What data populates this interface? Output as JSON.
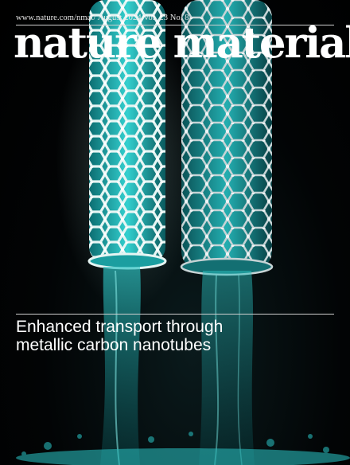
{
  "cover": {
    "header_line": "www.nature.com/nmat/ August 2024 Vol. 23 No. 8",
    "masthead": "nature materials",
    "headline_lines": [
      "Enhanced transport through",
      "metallic carbon nanotubes"
    ]
  },
  "colors": {
    "background": "#000000",
    "text": "#ffffff",
    "water": "#1fb5b8",
    "tube_left": "#dcf1ef",
    "tube_right": "#b8c9cc"
  },
  "image": {
    "subject": "two carbon nanotubes with water flowing through them"
  }
}
